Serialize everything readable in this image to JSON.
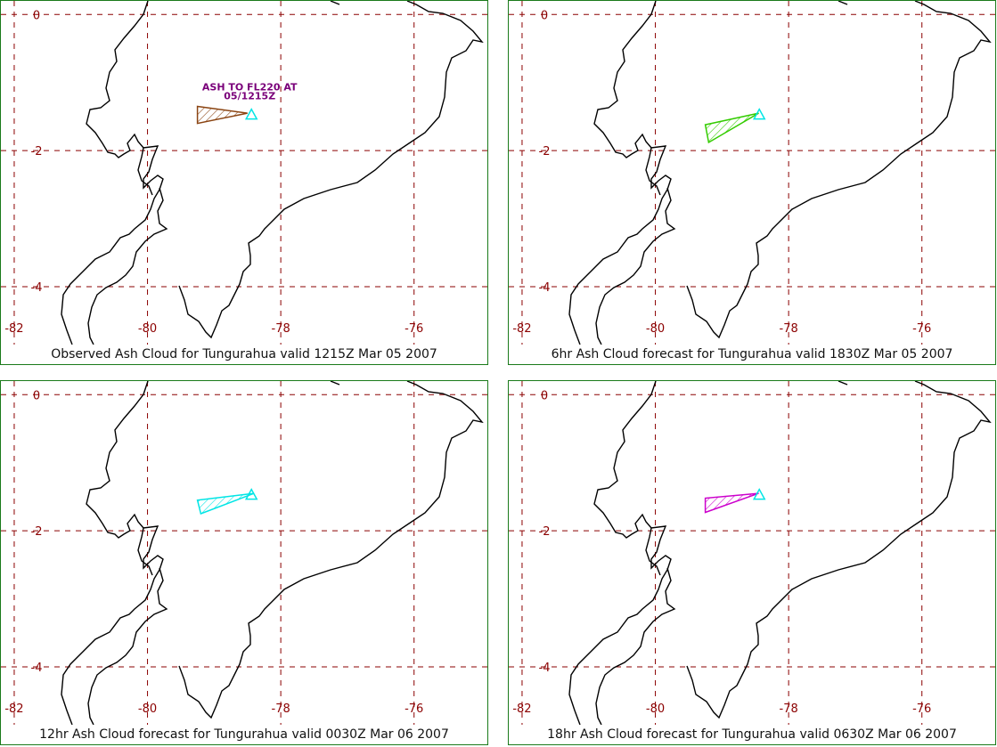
{
  "colors": {
    "frame": "#1a7a1a",
    "grid": "#8b0000",
    "coast": "#000000",
    "volcano": "#00e5e5",
    "label_text": "#7a007a"
  },
  "panels": [
    {
      "caption": "Observed Ash Cloud for Tungurahua valid 1215Z Mar 05 2007",
      "cloud_color": "#8b4513",
      "annotation_lines": [
        "ASH TO FL220 AT",
        "05/1215Z"
      ],
      "cloud_polygon_lonlat": [
        [
          -78.5,
          -1.45
        ],
        [
          -79.25,
          -1.35
        ],
        [
          -79.25,
          -1.6
        ]
      ]
    },
    {
      "caption": "6hr Ash Cloud forecast for Tungurahua valid 1830Z Mar 05 2007",
      "cloud_color": "#33cc00",
      "annotation_lines": [],
      "cloud_polygon_lonlat": [
        [
          -78.45,
          -1.45
        ],
        [
          -79.25,
          -1.62
        ],
        [
          -79.2,
          -1.88
        ]
      ]
    },
    {
      "caption": "12hr Ash Cloud forecast for Tungurahua valid 0030Z Mar 06 2007",
      "cloud_color": "#00e5e5",
      "annotation_lines": [],
      "cloud_polygon_lonlat": [
        [
          -78.4,
          -1.45
        ],
        [
          -79.25,
          -1.55
        ],
        [
          -79.2,
          -1.75
        ]
      ]
    },
    {
      "caption": "18hr Ash Cloud forecast for Tungurahua valid 0630Z Mar 06 2007",
      "cloud_color": "#cc00cc",
      "annotation_lines": [],
      "cloud_polygon_lonlat": [
        [
          -78.45,
          -1.45
        ],
        [
          -79.25,
          -1.52
        ],
        [
          -79.25,
          -1.73
        ]
      ]
    }
  ],
  "map": {
    "lon_range": [
      -82.2,
      -74.9
    ],
    "lat_range": [
      -4.85,
      0.2
    ],
    "lon_ticks": [
      -82,
      -80,
      -78,
      -76
    ],
    "lon_tick_labels": [
      "-82",
      "-80",
      "-78",
      "-76"
    ],
    "lat_ticks": [
      0,
      -2,
      -4
    ],
    "lat_tick_labels": [
      "0",
      "-2",
      "-4"
    ],
    "volcano": {
      "name": "Tungurahua",
      "lon": -78.44,
      "lat": -1.47
    }
  }
}
